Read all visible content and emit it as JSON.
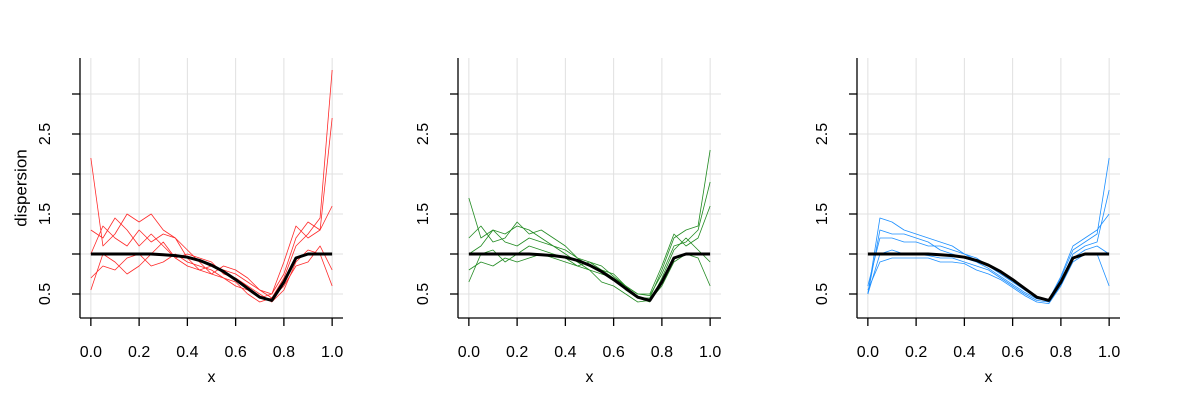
{
  "chart_data": [
    {
      "type": "line",
      "xlabel": "x",
      "ylabel": "dispersion",
      "x": [
        0,
        0.05,
        0.1,
        0.15,
        0.2,
        0.25,
        0.3,
        0.35,
        0.4,
        0.45,
        0.5,
        0.55,
        0.6,
        0.65,
        0.7,
        0.75,
        0.8,
        0.85,
        0.9,
        0.95,
        1
      ],
      "xlim": [
        -0.045,
        1.045
      ],
      "ylim": [
        0.2,
        3.45
      ],
      "xticks": [
        {
          "value": 0,
          "label": "0.0"
        },
        0.2,
        0.4,
        0.6,
        0.8,
        {
          "value": 1,
          "label": "1.0"
        }
      ],
      "yticks": [
        0.5,
        1.5,
        2.5
      ],
      "yminor_ticks": [
        1,
        2,
        3
      ],
      "grid": true,
      "series": [
        {
          "color": "#ff2a2a",
          "line_width": 0.8,
          "values": [
            1.3,
            1.2,
            1.45,
            1.3,
            1.1,
            1.25,
            1.1,
            0.95,
            0.85,
            0.8,
            0.75,
            0.7,
            0.6,
            0.55,
            0.45,
            0.5,
            0.75,
            1.2,
            1.4,
            1.3,
            1.6
          ]
        },
        {
          "color": "#ff2a2a",
          "line_width": 0.8,
          "values": [
            0.7,
            0.85,
            0.8,
            0.95,
            1.0,
            0.85,
            0.9,
            1.0,
            0.9,
            0.85,
            0.8,
            0.7,
            0.65,
            0.5,
            0.4,
            0.45,
            0.6,
            0.85,
            0.9,
            1.1,
            0.8
          ]
        },
        {
          "color": "#ff2a2a",
          "line_width": 0.8,
          "values": [
            2.2,
            1.1,
            1.25,
            1.5,
            1.4,
            1.5,
            1.3,
            1.2,
            1.05,
            0.9,
            0.75,
            0.85,
            0.8,
            0.7,
            0.55,
            0.45,
            0.7,
            1.1,
            1.25,
            1.45,
            3.3
          ]
        },
        {
          "color": "#ff2a2a",
          "line_width": 0.8,
          "values": [
            0.55,
            1.0,
            0.9,
            0.75,
            0.85,
            1.0,
            1.15,
            0.95,
            1.0,
            0.95,
            0.9,
            0.75,
            0.7,
            0.6,
            0.5,
            0.4,
            0.55,
            0.9,
            1.05,
            1.0,
            0.6
          ]
        },
        {
          "color": "#ff2a2a",
          "line_width": 0.8,
          "values": [
            1.0,
            1.35,
            1.2,
            1.1,
            1.3,
            1.15,
            1.25,
            1.2,
            0.95,
            0.8,
            0.85,
            0.8,
            0.75,
            0.65,
            0.55,
            0.5,
            0.9,
            1.35,
            1.2,
            1.3,
            2.7
          ]
        },
        {
          "color": "#000000",
          "line_width": 3,
          "values": [
            1,
            1,
            1,
            1,
            1,
            1,
            0.99,
            0.98,
            0.96,
            0.92,
            0.86,
            0.78,
            0.68,
            0.57,
            0.46,
            0.42,
            0.65,
            0.95,
            1,
            1,
            1
          ]
        }
      ]
    },
    {
      "type": "line",
      "xlabel": "x",
      "x": [
        0,
        0.05,
        0.1,
        0.15,
        0.2,
        0.25,
        0.3,
        0.35,
        0.4,
        0.45,
        0.5,
        0.55,
        0.6,
        0.65,
        0.7,
        0.75,
        0.8,
        0.85,
        0.9,
        0.95,
        1
      ],
      "xlim": [
        -0.045,
        1.045
      ],
      "ylim": [
        0.2,
        3.45
      ],
      "xticks": [
        {
          "value": 0,
          "label": "0.0"
        },
        0.2,
        0.4,
        0.6,
        0.8,
        {
          "value": 1,
          "label": "1.0"
        }
      ],
      "yticks": [
        0.5,
        1.5,
        2.5
      ],
      "yminor_ticks": [
        1,
        2,
        3
      ],
      "grid": true,
      "series": [
        {
          "color": "#228b22",
          "line_width": 0.8,
          "values": [
            1.7,
            1.2,
            1.3,
            1.25,
            1.35,
            1.3,
            1.2,
            1.1,
            1.0,
            0.9,
            0.8,
            0.75,
            0.7,
            0.55,
            0.45,
            0.45,
            0.8,
            1.2,
            1.3,
            1.35,
            2.3
          ]
        },
        {
          "color": "#228b22",
          "line_width": 0.8,
          "values": [
            0.8,
            0.9,
            0.85,
            0.95,
            0.9,
            0.95,
            1.0,
            0.95,
            0.9,
            0.85,
            0.8,
            0.65,
            0.6,
            0.5,
            0.4,
            0.42,
            0.6,
            0.9,
            1.0,
            0.95,
            0.6
          ]
        },
        {
          "color": "#228b22",
          "line_width": 0.8,
          "values": [
            1.2,
            1.35,
            1.15,
            1.2,
            1.4,
            1.25,
            1.3,
            1.2,
            1.1,
            0.95,
            0.85,
            0.8,
            0.75,
            0.6,
            0.5,
            0.5,
            0.85,
            1.25,
            1.1,
            1.2,
            1.6
          ]
        },
        {
          "color": "#228b22",
          "line_width": 0.8,
          "values": [
            0.65,
            1.0,
            1.05,
            0.9,
            1.0,
            1.1,
            1.05,
            1.0,
            0.95,
            0.85,
            0.9,
            0.8,
            0.7,
            0.6,
            0.45,
            0.4,
            0.7,
            1.05,
            1.2,
            1.05,
            0.9
          ]
        },
        {
          "color": "#228b22",
          "line_width": 0.8,
          "values": [
            1.0,
            1.1,
            1.3,
            1.15,
            1.1,
            1.2,
            1.15,
            1.1,
            1.05,
            0.95,
            0.9,
            0.85,
            0.72,
            0.6,
            0.5,
            0.48,
            0.75,
            1.1,
            1.15,
            1.3,
            1.9
          ]
        },
        {
          "color": "#000000",
          "line_width": 3,
          "values": [
            1,
            1,
            1,
            1,
            1,
            1,
            0.99,
            0.98,
            0.96,
            0.92,
            0.86,
            0.78,
            0.68,
            0.57,
            0.46,
            0.42,
            0.65,
            0.95,
            1,
            1,
            1
          ]
        }
      ]
    },
    {
      "type": "line",
      "xlabel": "x",
      "x": [
        0,
        0.05,
        0.1,
        0.15,
        0.2,
        0.25,
        0.3,
        0.35,
        0.4,
        0.45,
        0.5,
        0.55,
        0.6,
        0.65,
        0.7,
        0.75,
        0.8,
        0.85,
        0.9,
        0.95,
        1
      ],
      "xlim": [
        -0.045,
        1.045
      ],
      "ylim": [
        0.2,
        3.45
      ],
      "xticks": [
        {
          "value": 0,
          "label": "0.0"
        },
        0.2,
        0.4,
        0.6,
        0.8,
        {
          "value": 1,
          "label": "1.0"
        }
      ],
      "yticks": [
        0.5,
        1.5,
        2.5
      ],
      "yminor_ticks": [
        1,
        2,
        3
      ],
      "grid": true,
      "series": [
        {
          "color": "#1e90ff",
          "line_width": 0.8,
          "values": [
            0.5,
            1.45,
            1.4,
            1.3,
            1.25,
            1.2,
            1.15,
            1.1,
            1.0,
            0.95,
            0.85,
            0.75,
            0.65,
            0.55,
            0.45,
            0.42,
            0.7,
            1.05,
            1.15,
            1.25,
            2.2
          ]
        },
        {
          "color": "#1e90ff",
          "line_width": 0.8,
          "values": [
            0.5,
            1.0,
            1.05,
            1.0,
            1.0,
            0.98,
            0.95,
            0.95,
            0.9,
            0.85,
            0.8,
            0.7,
            0.6,
            0.5,
            0.42,
            0.4,
            0.6,
            0.9,
            1.0,
            1.0,
            0.6
          ]
        },
        {
          "color": "#1e90ff",
          "line_width": 0.8,
          "values": [
            0.6,
            1.2,
            1.2,
            1.15,
            1.15,
            1.1,
            1.1,
            1.05,
            1.0,
            0.92,
            0.85,
            0.78,
            0.68,
            0.55,
            0.46,
            0.43,
            0.72,
            1.1,
            1.2,
            1.3,
            1.5
          ]
        },
        {
          "color": "#1e90ff",
          "line_width": 0.8,
          "values": [
            0.55,
            0.9,
            0.95,
            0.95,
            0.95,
            0.95,
            0.9,
            0.9,
            0.88,
            0.8,
            0.75,
            0.68,
            0.58,
            0.48,
            0.4,
            0.38,
            0.6,
            0.95,
            1.05,
            1.1,
            1.0
          ]
        },
        {
          "color": "#1e90ff",
          "line_width": 0.8,
          "values": [
            0.5,
            1.3,
            1.25,
            1.25,
            1.2,
            1.15,
            1.05,
            1.0,
            0.95,
            0.9,
            0.82,
            0.72,
            0.62,
            0.52,
            0.44,
            0.42,
            0.65,
            1.0,
            1.1,
            1.15,
            1.8
          ]
        },
        {
          "color": "#000000",
          "line_width": 3,
          "values": [
            1,
            1,
            1,
            1,
            1,
            1,
            0.99,
            0.98,
            0.96,
            0.92,
            0.86,
            0.78,
            0.68,
            0.57,
            0.46,
            0.42,
            0.65,
            0.95,
            1,
            1,
            1
          ]
        }
      ]
    }
  ]
}
